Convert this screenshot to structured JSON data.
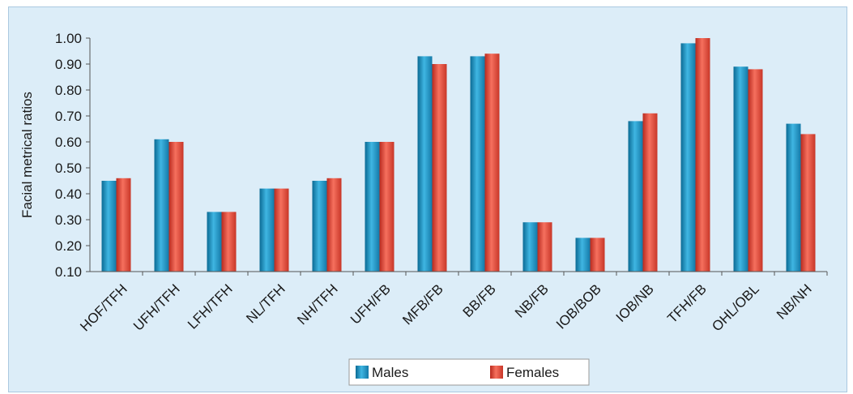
{
  "chart_data": {
    "type": "bar",
    "ylabel": "Facial metrical ratios",
    "ylim": [
      0.1,
      1.0
    ],
    "yticks": [
      "0.10",
      "0.20",
      "0.30",
      "0.40",
      "0.50",
      "0.60",
      "0.70",
      "0.80",
      "0.90",
      "1.00"
    ],
    "categories": [
      "HOF/TFH",
      "UFH/TFH",
      "LFH/TFH",
      "NL/TFH",
      "NH/TFH",
      "UFH/FB",
      "MFB/FB",
      "BB/FB",
      "NB/FB",
      "IOB/BOB",
      "IOB/NB",
      "TFH/FB",
      "OHL/OBL",
      "NB/NH"
    ],
    "series": [
      {
        "name": "Males",
        "color": "#1f8fbf",
        "values": [
          0.45,
          0.61,
          0.33,
          0.42,
          0.45,
          0.6,
          0.93,
          0.93,
          0.29,
          0.23,
          0.68,
          0.98,
          0.89,
          0.67
        ]
      },
      {
        "name": "Females",
        "color": "#e8493a",
        "values": [
          0.46,
          0.6,
          0.33,
          0.42,
          0.46,
          0.6,
          0.9,
          0.94,
          0.29,
          0.23,
          0.71,
          1.0,
          0.88,
          0.63
        ]
      }
    ],
    "grid": false,
    "legend": "bottom-center"
  }
}
